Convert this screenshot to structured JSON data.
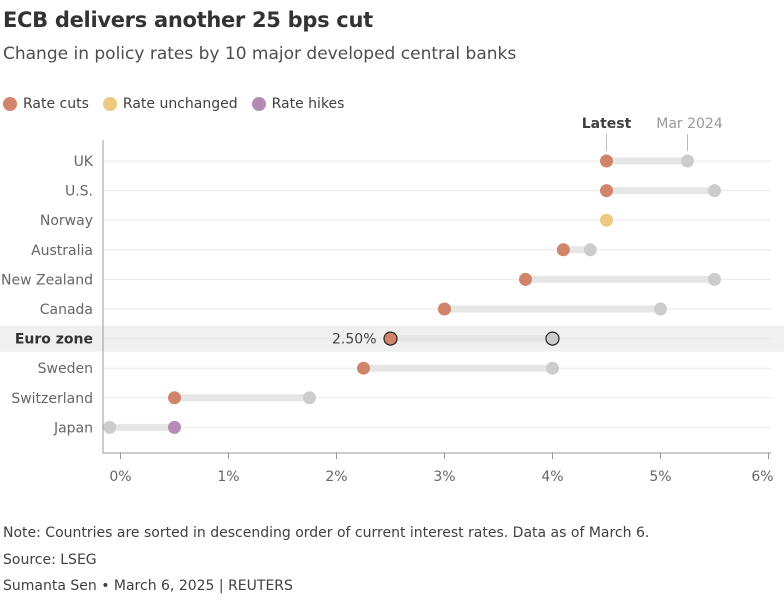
{
  "header": {
    "title": "ECB delivers another 25 bps cut",
    "subtitle": "Change in policy rates by 10 major developed central banks"
  },
  "legend": [
    {
      "label": "Rate cuts",
      "color": "#d0846a"
    },
    {
      "label": "Rate unchanged",
      "color": "#ebc97f"
    },
    {
      "label": "Rate hikes",
      "color": "#b48bb4"
    }
  ],
  "colors": {
    "previous": "#cccccc",
    "range_bar": "#e6e6e6",
    "highlight_band": "#f0f0f0",
    "grid": "#e8e8e8",
    "axis": "#999999"
  },
  "chart_data": {
    "type": "dumbbell",
    "column_labels": {
      "latest": "Latest",
      "previous": "Mar 2024"
    },
    "x_ticks": [
      0,
      1,
      2,
      3,
      4,
      5,
      6
    ],
    "x_tick_labels": [
      "0%",
      "1%",
      "2%",
      "3%",
      "4%",
      "5%",
      "6%"
    ],
    "xlim": [
      -0.17,
      6.0
    ],
    "highlight": "Euro zone",
    "highlight_value_label": "2.50%",
    "countries": [
      {
        "name": "UK",
        "latest": 4.5,
        "previous": 5.25,
        "change": "cut"
      },
      {
        "name": "U.S.",
        "latest": 4.5,
        "previous": 5.5,
        "change": "cut"
      },
      {
        "name": "Norway",
        "latest": 4.5,
        "previous": 4.5,
        "change": "unchanged"
      },
      {
        "name": "Australia",
        "latest": 4.1,
        "previous": 4.35,
        "change": "cut"
      },
      {
        "name": "New Zealand",
        "latest": 3.75,
        "previous": 5.5,
        "change": "cut"
      },
      {
        "name": "Canada",
        "latest": 3.0,
        "previous": 5.0,
        "change": "cut"
      },
      {
        "name": "Euro zone",
        "latest": 2.5,
        "previous": 4.0,
        "change": "cut"
      },
      {
        "name": "Sweden",
        "latest": 2.25,
        "previous": 4.0,
        "change": "cut"
      },
      {
        "name": "Switzerland",
        "latest": 0.5,
        "previous": 1.75,
        "change": "cut"
      },
      {
        "name": "Japan",
        "latest": 0.5,
        "previous": -0.1,
        "change": "hike"
      }
    ]
  },
  "footer": {
    "note": "Note: Countries are sorted in descending order of current interest rates. Data as of March 6.",
    "source": "Source: LSEG",
    "credit": "Sumanta Sen • March 6, 2025 | REUTERS"
  }
}
